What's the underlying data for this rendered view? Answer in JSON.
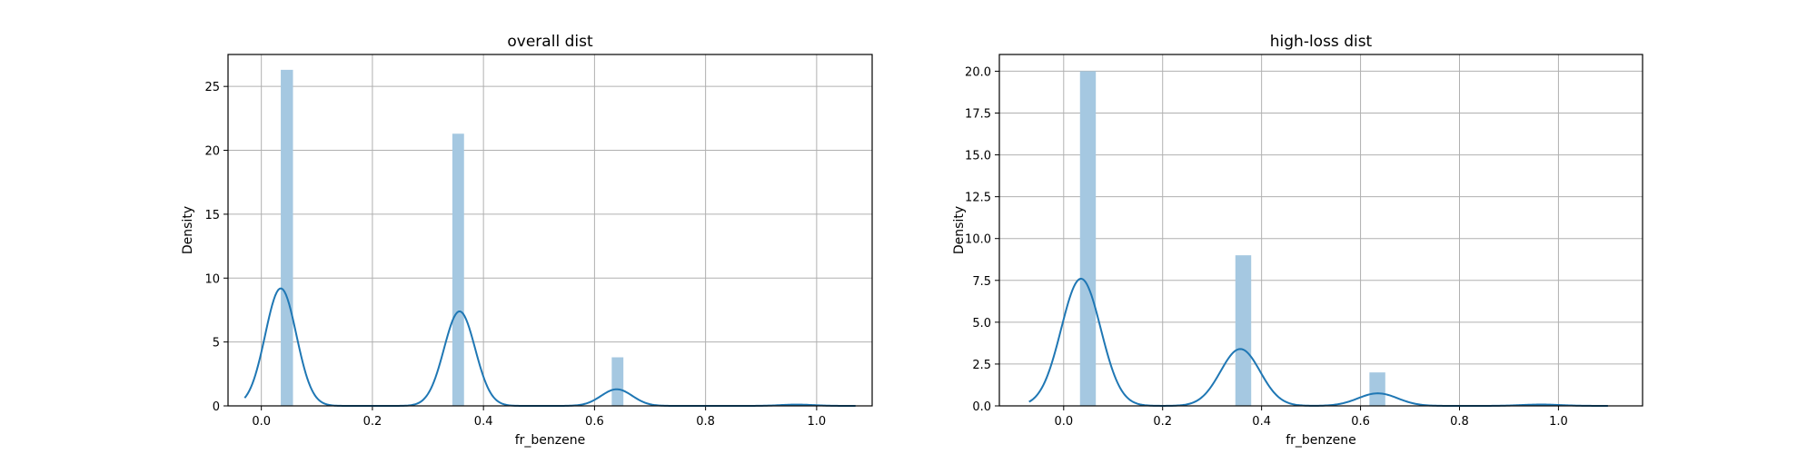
{
  "chart_data": [
    {
      "type": "bar",
      "subtype": "histogram-with-kde",
      "title": "overall dist",
      "xlabel": "fr_benzene",
      "ylabel": "Density",
      "xlim": [
        -0.06,
        1.1
      ],
      "ylim": [
        0,
        27.5
      ],
      "xticks": [
        "0.0",
        "0.2",
        "0.4",
        "0.6",
        "0.8",
        "1.0"
      ],
      "yticks": [
        "0",
        "5",
        "10",
        "15",
        "20",
        "25"
      ],
      "grid": true,
      "colors": {
        "bars": "#a5c8e1",
        "kde": "#1f77b4"
      },
      "bars": [
        {
          "x0": 0.035,
          "x1": 0.057,
          "value": 26.3
        },
        {
          "x0": 0.344,
          "x1": 0.365,
          "value": 21.3
        },
        {
          "x0": 0.631,
          "x1": 0.652,
          "value": 3.8
        },
        {
          "x0": 0.953,
          "x1": 0.974,
          "value": 0.15
        }
      ],
      "kde": {
        "x_range": [
          -0.03,
          1.07
        ],
        "peaks": [
          {
            "center": 0.035,
            "height": 9.2,
            "sigma": 0.028
          },
          {
            "center": 0.357,
            "height": 7.4,
            "sigma": 0.028
          },
          {
            "center": 0.64,
            "height": 1.3,
            "sigma": 0.028
          },
          {
            "center": 0.965,
            "height": 0.1,
            "sigma": 0.03
          }
        ]
      }
    },
    {
      "type": "bar",
      "subtype": "histogram-with-kde",
      "title": "high-loss dist",
      "xlabel": "fr_benzene",
      "ylabel": "Density",
      "xlim": [
        -0.13,
        1.17
      ],
      "ylim": [
        0,
        21
      ],
      "xticks": [
        "0.0",
        "0.2",
        "0.4",
        "0.6",
        "0.8",
        "1.0"
      ],
      "yticks": [
        "0.0",
        "2.5",
        "5.0",
        "7.5",
        "10.0",
        "12.5",
        "15.0",
        "17.5",
        "20.0"
      ],
      "grid": true,
      "colors": {
        "bars": "#a5c8e1",
        "kde": "#1f77b4"
      },
      "bars": [
        {
          "x0": 0.033,
          "x1": 0.065,
          "value": 20.0
        },
        {
          "x0": 0.347,
          "x1": 0.379,
          "value": 9.0
        },
        {
          "x0": 0.618,
          "x1": 0.65,
          "value": 2.0
        },
        {
          "x0": 0.935,
          "x1": 0.967,
          "value": 0.1
        }
      ],
      "kde": {
        "x_range": [
          -0.07,
          1.1
        ],
        "peaks": [
          {
            "center": 0.035,
            "height": 7.6,
            "sigma": 0.04
          },
          {
            "center": 0.357,
            "height": 3.4,
            "sigma": 0.04
          },
          {
            "center": 0.635,
            "height": 0.75,
            "sigma": 0.04
          },
          {
            "center": 0.965,
            "height": 0.08,
            "sigma": 0.04
          }
        ]
      }
    }
  ]
}
